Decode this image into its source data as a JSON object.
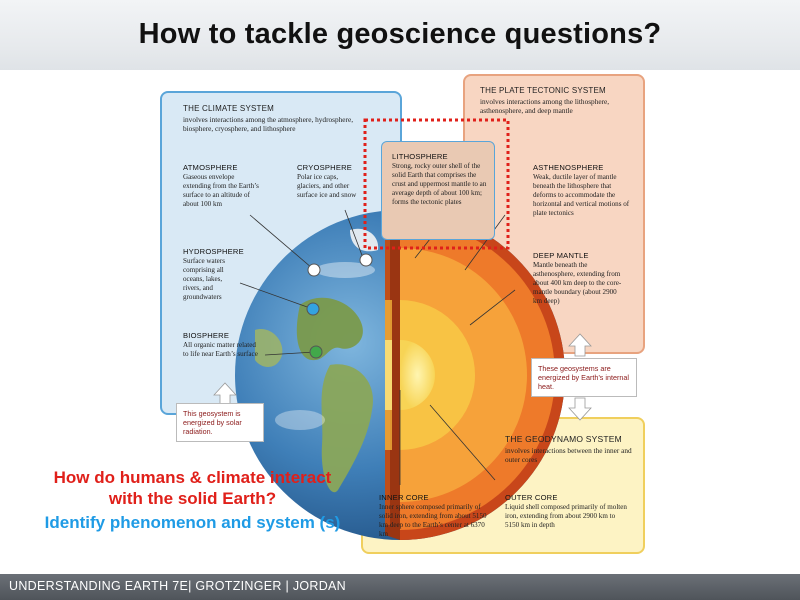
{
  "slide": {
    "title": "How to tackle geoscience questions?",
    "footer": "UNDERSTANDING EARTH 7E| GROTZINGER | JORDAN"
  },
  "climate": {
    "title": "THE CLIMATE SYSTEM",
    "subtitle": "involves interactions among the atmosphere, hydrosphere, biosphere, cryosphere, and lithosphere",
    "atmosphere_label": "ATMOSPHERE",
    "atmosphere_desc": "Gaseous envelope extending from the Earth’s surface to an altitude of about 100 km",
    "cryosphere_label": "CRYOSPHERE",
    "cryosphere_desc": "Polar ice caps, glaciers, and other surface ice and snow",
    "hydrosphere_label": "HYDROSPHERE",
    "hydrosphere_desc": "Surface waters comprising all oceans, lakes, rivers, and groundwaters",
    "biosphere_label": "BIOSPHERE",
    "biosphere_desc": "All organic matter related to life near Earth’s surface",
    "energy_note": "This geosystem is energized by solar radiation."
  },
  "plate": {
    "title": "THE PLATE TECTONIC SYSTEM",
    "subtitle": "involves interactions among the lithosphere, asthenosphere, and deep mantle",
    "lithosphere_label": "LITHOSPHERE",
    "lithosphere_desc": "Strong, rocky outer shell of the solid Earth that comprises the crust and uppermost mantle to an average depth of about 100 km; forms the tectonic plates",
    "asthenosphere_label": "ASTHENOSPHERE",
    "asthenosphere_desc": "Weak, ductile layer of mantle beneath the lithosphere that deforms to accommodate the horizontal and vertical motions of plate tectonics",
    "deep_mantle_label": "DEEP MANTLE",
    "deep_mantle_desc": "Mantle beneath the asthenosphere, extending from about 400 km deep to the core-mantle boundary (about 2900 km deep)",
    "energy_note": "These geosystems are energized by Earth’s internal heat."
  },
  "geodynamo": {
    "title": "THE GEODYNAMO SYSTEM",
    "subtitle": "involves interactions between the inner and outer cores",
    "inner_core_label": "INNER CORE",
    "inner_core_desc": "Inner sphere composed primarily of solid iron, extending from about 5150 km deep to the Earth’s center at 6370 km",
    "outer_core_label": "OUTER CORE",
    "outer_core_desc": "Liquid shell composed primarily of molten iron, extending from about 2900 km to 5150 km in depth"
  },
  "questions": {
    "line1": "How do humans & climate interact with the solid Earth?",
    "line2": "Identify phenomenon and system (s)"
  },
  "colors": {
    "question_red": "#e0201a",
    "question_blue": "#1f9be5",
    "climate_box": "#d9e9f5",
    "plate_box": "#f8d6c2",
    "geodynamo_box": "#fdf3c4",
    "highlight_dash": "#e0201a"
  }
}
